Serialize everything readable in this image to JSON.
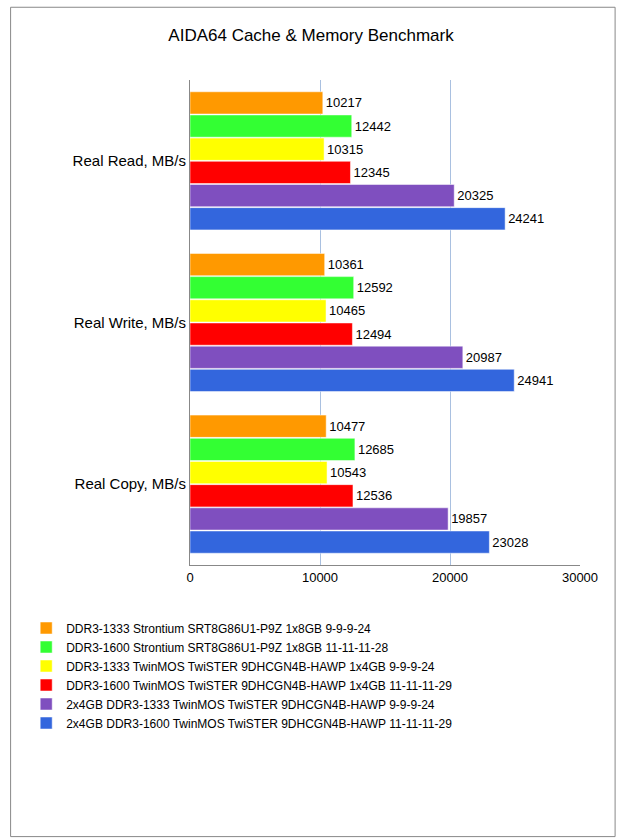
{
  "chart_data": {
    "type": "bar",
    "orientation": "horizontal",
    "title": "AIDA64 Cache & Memory Benchmark",
    "categories": [
      "Real Read, MB/s",
      "Real Write, MB/s",
      "Real Copy, MB/s"
    ],
    "series": [
      {
        "name": "DDR3-1333 Strontium SRT8G86U1-P9Z 1x8GB 9-9-9-24",
        "color": "#FF9900",
        "values": [
          10217,
          10361,
          10477
        ]
      },
      {
        "name": "DDR3-1600 Strontium SRT8G86U1-P9Z 1x8GB 11-11-11-28",
        "color": "#33FF33",
        "values": [
          12442,
          12592,
          12685
        ]
      },
      {
        "name": "DDR3-1333 TwinMOS TwiSTER 9DHCGN4B-HAWP 1x4GB 9-9-9-24",
        "color": "#FFFF00",
        "values": [
          10315,
          10465,
          10543
        ]
      },
      {
        "name": "DDR3-1600 TwinMOS TwiSTER 9DHCGN4B-HAWP 1x4GB 11-11-11-29",
        "color": "#FF0000",
        "values": [
          12345,
          12494,
          12536
        ]
      },
      {
        "name": "2x4GB DDR3-1333 TwinMOS TwiSTER 9DHCGN4B-HAWP 9-9-9-24",
        "color": "#7F4FBF",
        "values": [
          20325,
          20987,
          19857
        ]
      },
      {
        "name": "2x4GB DDR3-1600 TwinMOS TwiSTER 9DHCGN4B-HAWP 11-11-11-29",
        "color": "#3366DD",
        "values": [
          24241,
          24941,
          23028
        ]
      }
    ],
    "xlim": [
      0,
      30000
    ],
    "xticks": [
      0,
      10000,
      20000,
      30000
    ],
    "grid": true,
    "data_labels": true,
    "legend": "bottom"
  }
}
